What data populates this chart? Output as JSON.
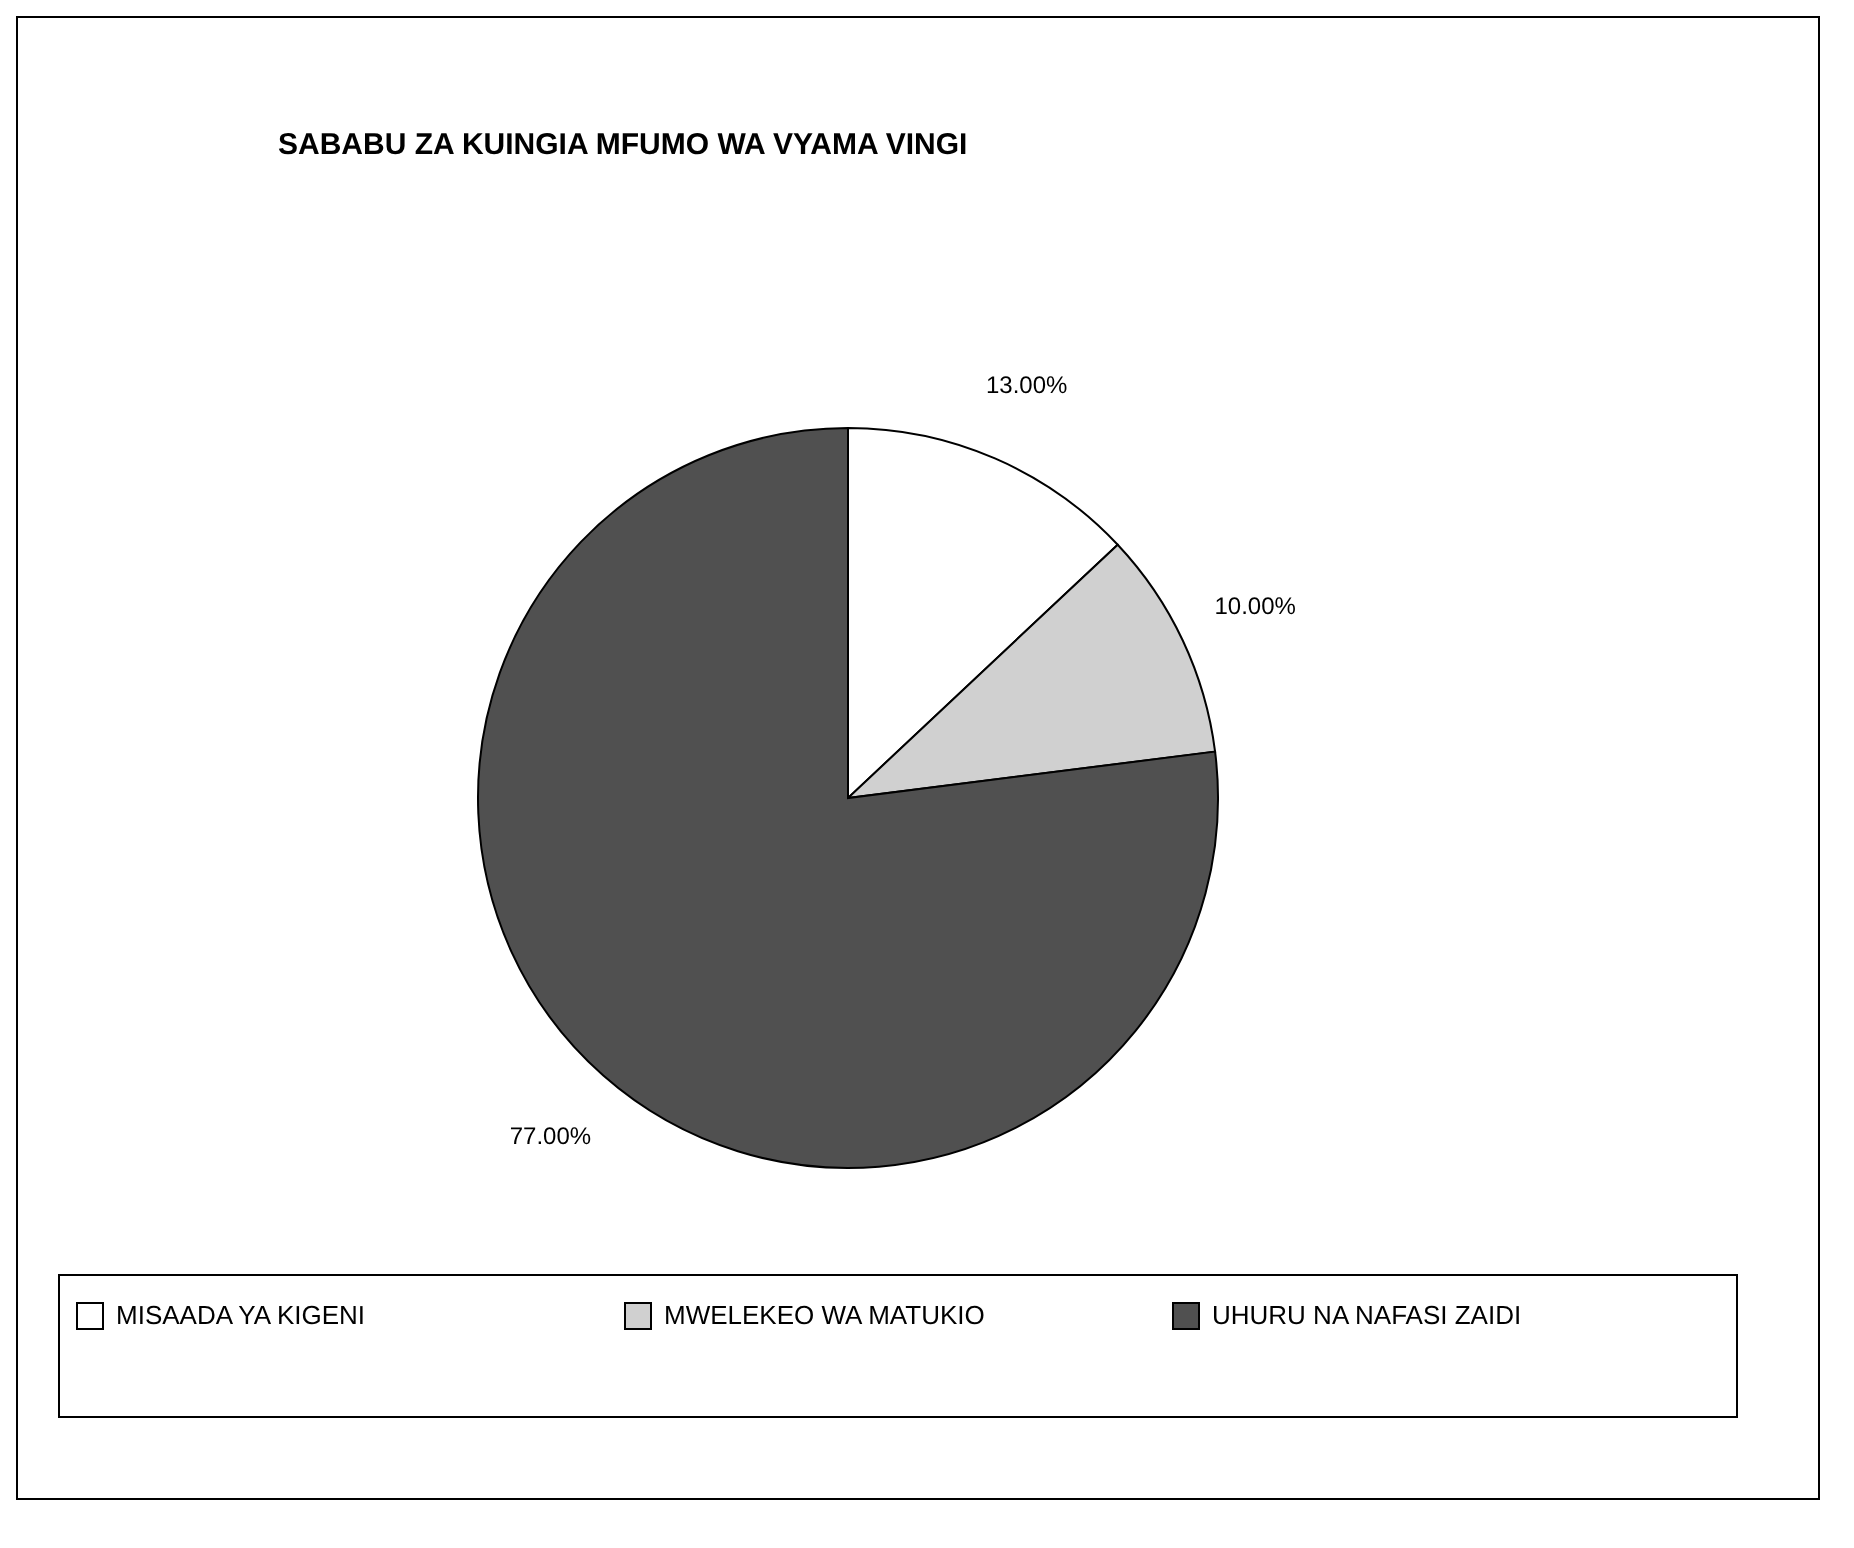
{
  "chart_data": {
    "type": "pie",
    "title": "SABABU ZA KUINGIA MFUMO WA VYAMA VINGI",
    "categories": [
      "MISAADA YA KIGENI",
      "MWELEKEO WA MATUKIO",
      "UHURU NA NAFASI ZAIDI"
    ],
    "values": [
      13,
      10,
      77
    ],
    "value_labels": [
      "13.00%",
      "10.00%",
      "77.00%"
    ],
    "colors": [
      "#ffffff",
      "#d0d0d0",
      "#505050"
    ],
    "legend": "bottom"
  }
}
